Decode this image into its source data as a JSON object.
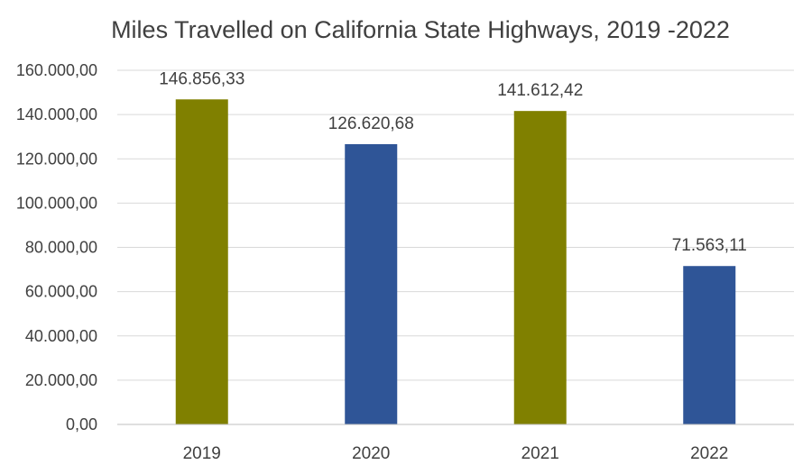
{
  "chart_data": {
    "type": "bar",
    "title": "Miles Travelled on California State Highways, 2019 -2022",
    "xlabel": "",
    "ylabel": "",
    "categories": [
      "2019",
      "2020",
      "2021",
      "2022"
    ],
    "values": [
      146856.33,
      126620.68,
      141612.42,
      71563.11
    ],
    "data_labels": [
      "146.856,33",
      "126.620,68",
      "141.612,42",
      "71.563,11"
    ],
    "bar_colors": [
      "#808000",
      "#2f5597",
      "#808000",
      "#2f5597"
    ],
    "ylim": [
      0,
      160000
    ],
    "yticks": [
      0,
      20000,
      40000,
      60000,
      80000,
      100000,
      120000,
      140000,
      160000
    ],
    "ytick_labels": [
      "0,00",
      "20.000,00",
      "40.000,00",
      "60.000,00",
      "80.000,00",
      "100.000,00",
      "120.000,00",
      "140.000,00",
      "160.000,00"
    ],
    "grid": true,
    "legend": "none"
  }
}
